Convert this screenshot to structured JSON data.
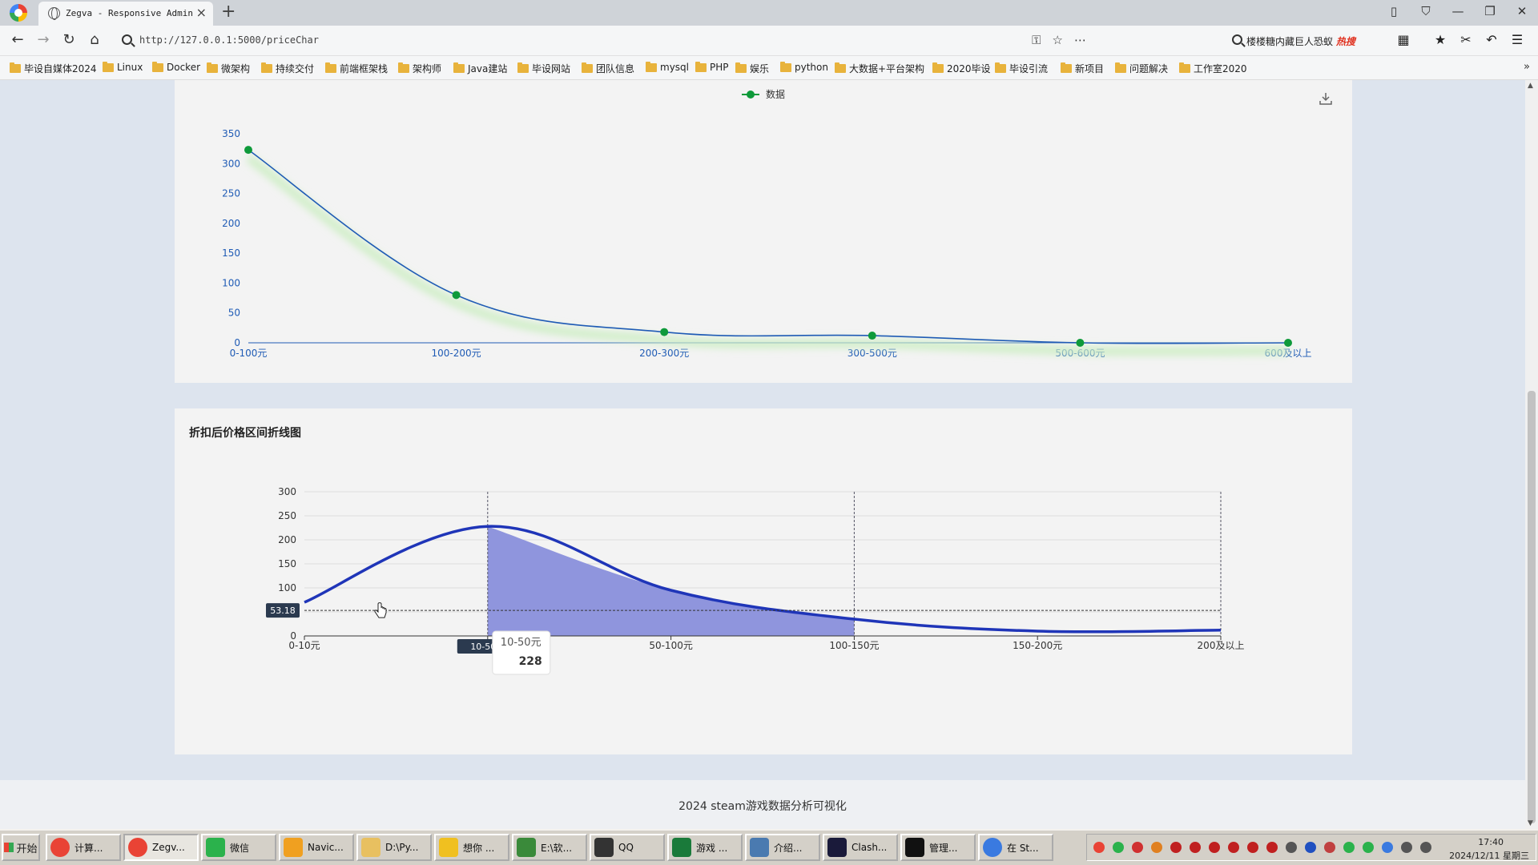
{
  "browser": {
    "tab_title": "Zegva - Responsive Admin &",
    "url": "http://127.0.0.1:5000/priceChar",
    "search_text": "楼楼糖内藏巨人恐蚁",
    "search_badge": "热搜",
    "bookmarks": [
      "毕设自媒体2024",
      "Linux",
      "Docker",
      "微架构",
      "持续交付",
      "前端框架栈",
      "架构师",
      "Java建站",
      "毕设网站",
      "团队信息",
      "mysql",
      "PHP",
      "娱乐",
      "python",
      "大数据+平台架构",
      "2020毕设",
      "毕设引流",
      "新项目",
      "问题解决",
      "工作室2020"
    ]
  },
  "chart1": {
    "legend_label": "数据",
    "colors": {
      "line": "#1f5bb5",
      "point": "#0e9a3a",
      "axis": "#1f5bb5",
      "glow": "#cdeec4"
    }
  },
  "chart2": {
    "title": "折扣后价格区间折线图",
    "colors": {
      "line": "#1f35b8",
      "area": "#8f95dd",
      "axis": "#333333",
      "grid": "#dddddd"
    },
    "crosshair_y_label": "53.18",
    "crosshair_x_label": "10-50元",
    "tooltip": {
      "category": "10-50元",
      "value": "228"
    }
  },
  "chart_data": [
    {
      "type": "line",
      "title": "",
      "series": [
        {
          "name": "数据",
          "values": [
            323,
            80,
            18,
            12,
            0,
            0
          ]
        }
      ],
      "categories": [
        "0-100元",
        "100-200元",
        "200-300元",
        "300-500元",
        "500-600元",
        "600及以上"
      ],
      "ylim": [
        0,
        350
      ],
      "yticks": [
        0,
        50,
        100,
        150,
        200,
        250,
        300,
        350
      ],
      "grid": false,
      "legend": "top-center"
    },
    {
      "type": "area",
      "title": "折扣后价格区间折线图",
      "series": [
        {
          "name": "",
          "values": [
            70,
            228,
            95,
            35,
            10,
            12
          ]
        }
      ],
      "categories": [
        "0-10元",
        "10-50元",
        "50-100元",
        "100-150元",
        "150-200元",
        "200及以上"
      ],
      "ylim": [
        0,
        300
      ],
      "yticks": [
        0,
        50,
        100,
        150,
        200,
        250,
        300
      ],
      "grid": true,
      "highlight_range": [
        "10-50元",
        "100-150元"
      ]
    }
  ],
  "footer": {
    "text": "2024 steam游戏数据分析可视化"
  },
  "taskbar": {
    "start": "开始",
    "tasks": [
      "计算...",
      "Zegv...",
      "微信",
      "Navic...",
      "D:\\Py...",
      "想你 ...",
      "E:\\软...",
      "QQ",
      "游戏 ...",
      "介绍...",
      "Clash...",
      "管理...",
      "在 St..."
    ],
    "time": "17:40",
    "date": "2024/12/11 星期三"
  }
}
